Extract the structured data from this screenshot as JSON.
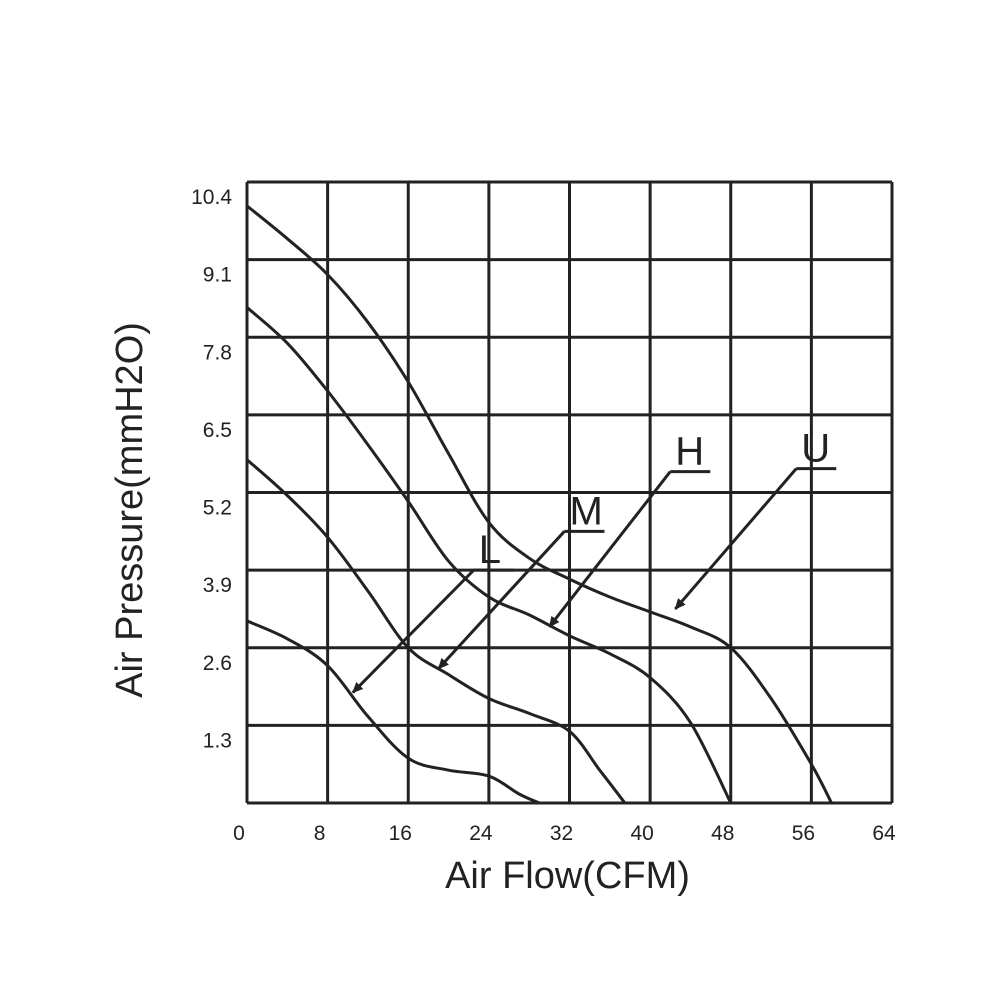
{
  "chart_data": {
    "type": "line",
    "title": "",
    "xlabel": "Air Flow(CFM)",
    "ylabel": "Air Pressure(mmH2O)",
    "xlim": [
      0,
      64
    ],
    "ylim": [
      0,
      10.4
    ],
    "x_ticks": [
      "0",
      "8",
      "16",
      "24",
      "32",
      "40",
      "48",
      "56",
      "64"
    ],
    "y_ticks": [
      "1.3",
      "2.6",
      "3.9",
      "5.2",
      "6.5",
      "7.8",
      "9.1",
      "10.4"
    ],
    "grid": true,
    "line_color": "#222222",
    "series": [
      {
        "name": "U",
        "points": [
          [
            0,
            10.0
          ],
          [
            4,
            9.45
          ],
          [
            8,
            8.85
          ],
          [
            12,
            8.05
          ],
          [
            16,
            7.05
          ],
          [
            20,
            5.85
          ],
          [
            24,
            4.7
          ],
          [
            28,
            4.1
          ],
          [
            32,
            3.75
          ],
          [
            36,
            3.45
          ],
          [
            40,
            3.2
          ],
          [
            44,
            2.95
          ],
          [
            48,
            2.6
          ],
          [
            52,
            1.75
          ],
          [
            56,
            0.65
          ],
          [
            58,
            0.0
          ]
        ]
      },
      {
        "name": "H",
        "points": [
          [
            0,
            8.3
          ],
          [
            4,
            7.7
          ],
          [
            8,
            6.9
          ],
          [
            12,
            6.0
          ],
          [
            16,
            5.05
          ],
          [
            20,
            4.05
          ],
          [
            24,
            3.45
          ],
          [
            28,
            3.15
          ],
          [
            32,
            2.8
          ],
          [
            36,
            2.5
          ],
          [
            40,
            2.1
          ],
          [
            44,
            1.35
          ],
          [
            48,
            0.0
          ]
        ]
      },
      {
        "name": "M",
        "points": [
          [
            0,
            5.75
          ],
          [
            4,
            5.15
          ],
          [
            8,
            4.45
          ],
          [
            12,
            3.55
          ],
          [
            16,
            2.6
          ],
          [
            20,
            2.15
          ],
          [
            24,
            1.75
          ],
          [
            28,
            1.5
          ],
          [
            32,
            1.2
          ],
          [
            35,
            0.55
          ],
          [
            37.5,
            0.0
          ]
        ]
      },
      {
        "name": "L",
        "points": [
          [
            0,
            3.05
          ],
          [
            4,
            2.75
          ],
          [
            8,
            2.3
          ],
          [
            12,
            1.45
          ],
          [
            16,
            0.75
          ],
          [
            20,
            0.55
          ],
          [
            24,
            0.45
          ],
          [
            27,
            0.15
          ],
          [
            29,
            0.0
          ]
        ]
      }
    ],
    "labels": [
      {
        "series": "L",
        "text": "L",
        "label_at": [
          22.5,
          3.9
        ],
        "arrow_to": [
          10.5,
          1.85
        ]
      },
      {
        "series": "M",
        "text": "M",
        "label_at": [
          31.5,
          4.55
        ],
        "arrow_to": [
          19,
          2.25
        ]
      },
      {
        "series": "H",
        "text": "H",
        "label_at": [
          42,
          5.55
        ],
        "arrow_to": [
          30,
          2.95
        ]
      },
      {
        "series": "U",
        "text": "U",
        "label_at": [
          54.5,
          5.6
        ],
        "arrow_to": [
          42.5,
          3.25
        ]
      }
    ]
  }
}
